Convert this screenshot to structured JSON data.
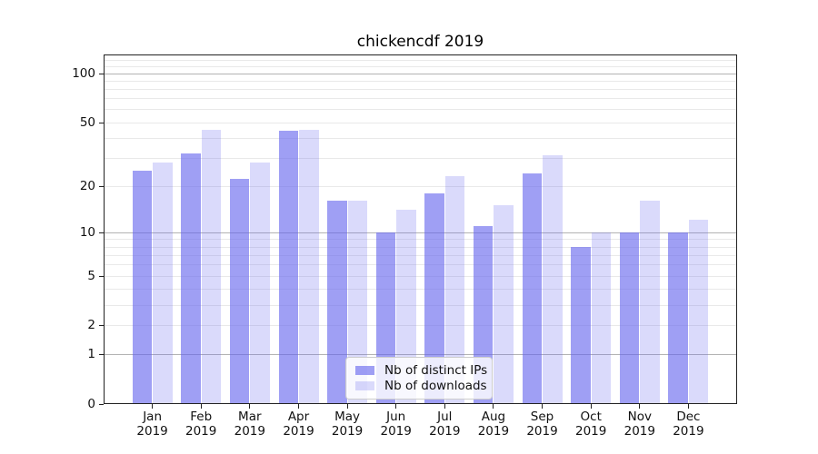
{
  "title": "chickencdf 2019",
  "chart_data": {
    "type": "bar",
    "title": "chickencdf 2019",
    "categories": [
      "Jan 2019",
      "Feb 2019",
      "Mar 2019",
      "Apr 2019",
      "May 2019",
      "Jun 2019",
      "Jul 2019",
      "Aug 2019",
      "Sep 2019",
      "Oct 2019",
      "Nov 2019",
      "Dec 2019"
    ],
    "x_tick_months": [
      "Jan",
      "Feb",
      "Mar",
      "Apr",
      "May",
      "Jun",
      "Jul",
      "Aug",
      "Sep",
      "Oct",
      "Nov",
      "Dec"
    ],
    "x_tick_year": "2019",
    "series": [
      {
        "name": "Nb of distinct IPs",
        "color": "rgba(100,100,237,0.62)",
        "values": [
          25,
          32,
          22,
          44,
          16,
          10,
          18,
          11,
          24,
          8,
          10,
          10
        ]
      },
      {
        "name": "Nb of downloads",
        "color": "rgba(100,100,237,0.24)",
        "values": [
          28,
          45,
          28,
          45,
          16,
          14,
          23,
          15,
          31,
          10,
          16,
          12
        ]
      }
    ],
    "yscale": "log10(1+v)",
    "ylim": [
      0,
      130
    ],
    "yticks": [
      100,
      50,
      20,
      10,
      5,
      2,
      1,
      0
    ],
    "grid_major": [
      1,
      10,
      100
    ],
    "grid_minor": [
      2,
      3,
      4,
      5,
      6,
      7,
      8,
      9,
      20,
      30,
      40,
      50,
      60,
      70,
      80,
      90,
      110,
      120
    ],
    "legend_position": "lower center",
    "colors": {
      "bar_distinct_ips": "rgba(100,100,237,0.62)",
      "bar_downloads": "rgba(100,100,237,0.24)",
      "grid_minor": "#e9e9e9",
      "grid_major": "#b3b3b3",
      "frame": "#222222",
      "text": "#111111"
    }
  }
}
